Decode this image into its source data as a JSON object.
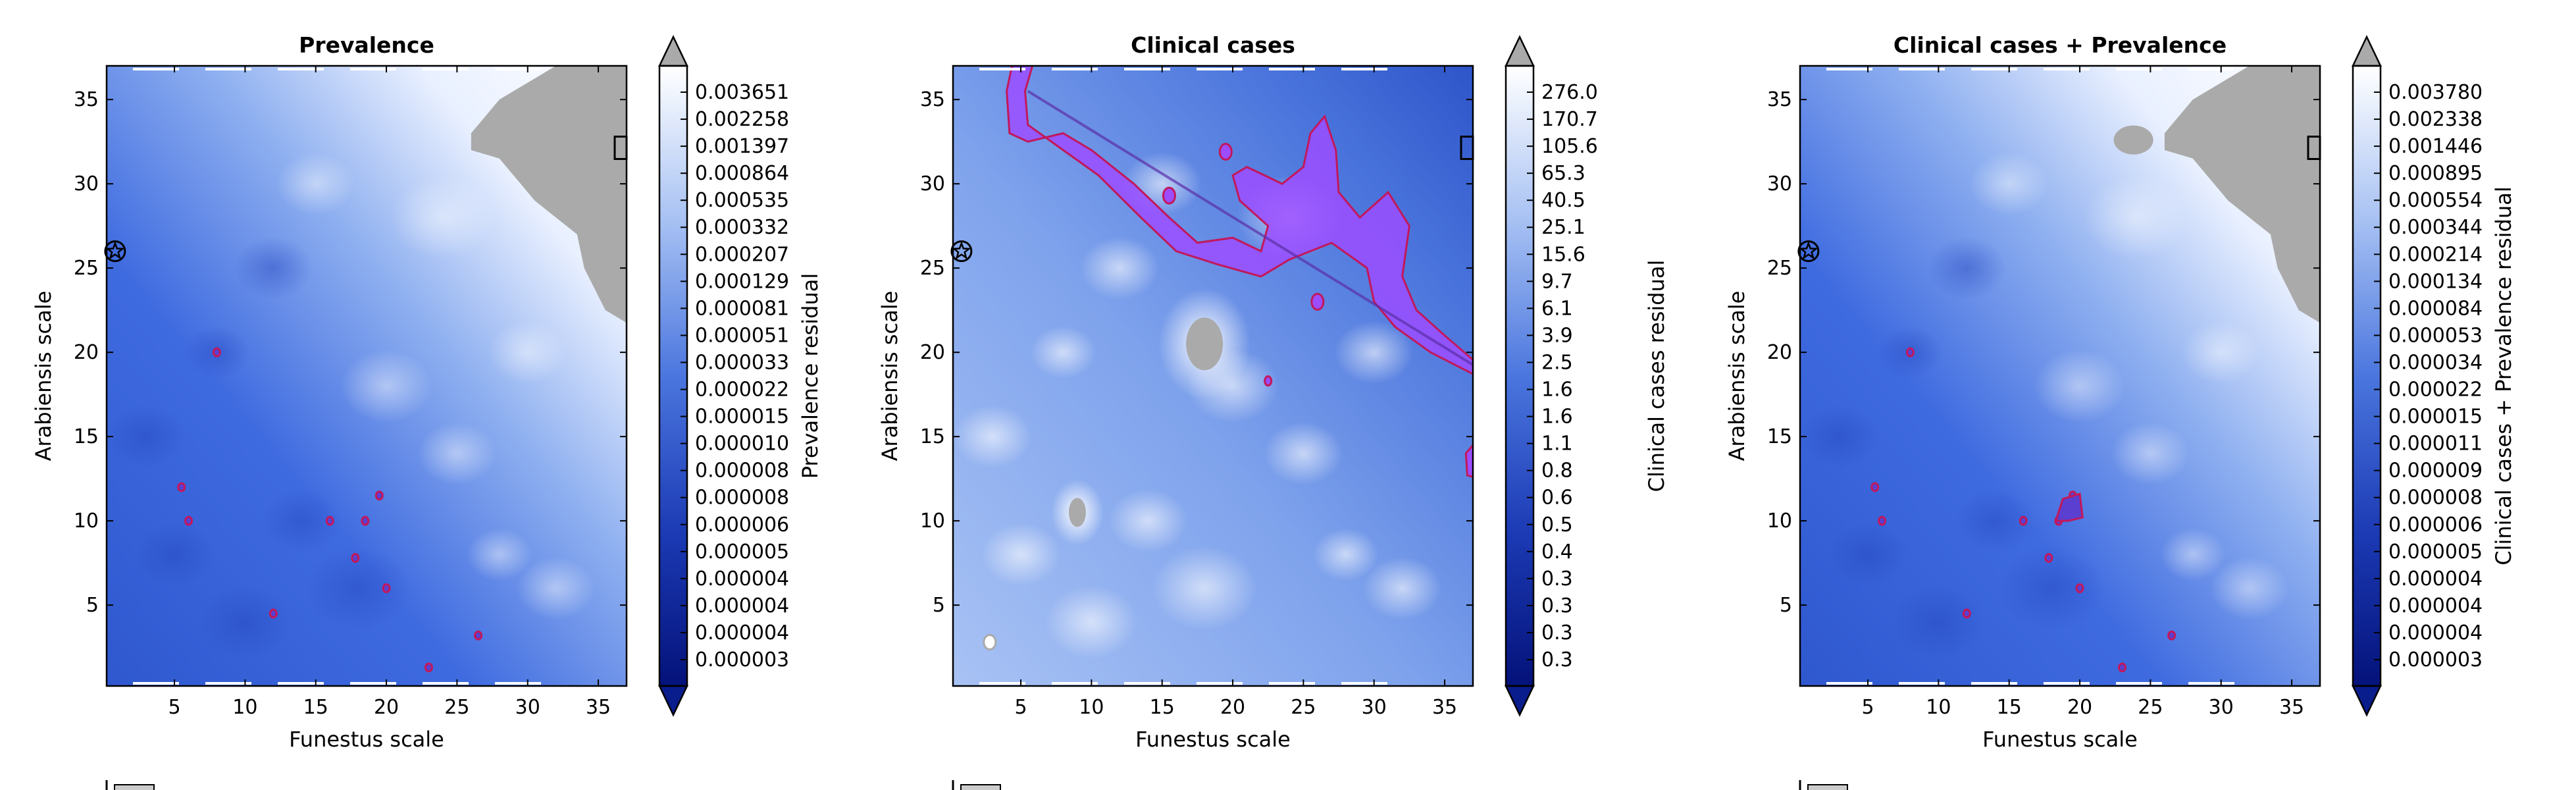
{
  "figure": {
    "colors": {
      "deep": "#0a1d8c",
      "mid": "#3a64d6",
      "light": "#9fbaf0",
      "pale": "#e8efff",
      "white": "#ffffff",
      "mask": "#aaaaaa",
      "contour": "#c2185b",
      "region": "#9b4dff"
    }
  },
  "chart_data": [
    {
      "type": "heatmap",
      "title": "Prevalence",
      "xlabel": "Funestus scale",
      "ylabel": "Arabiensis scale",
      "xlim": [
        0.2,
        37
      ],
      "ylim": [
        0.2,
        37
      ],
      "xticks": [
        5,
        10,
        15,
        20,
        25,
        30,
        35
      ],
      "yticks": [
        5,
        10,
        15,
        20,
        25,
        30,
        35
      ],
      "colorbar_label": "Prevalence residual",
      "colorbar_ticks": [
        "0.003651",
        "0.002258",
        "0.001397",
        "0.000864",
        "0.000535",
        "0.000332",
        "0.000207",
        "0.000129",
        "0.000081",
        "0.000051",
        "0.000033",
        "0.000022",
        "0.000015",
        "0.000010",
        "0.000008",
        "0.000008",
        "0.000006",
        "0.000005",
        "0.000004",
        "0.000004",
        "0.000004",
        "0.000003"
      ],
      "marker": {
        "x": 0.8,
        "y": 26.0
      }
    },
    {
      "type": "heatmap",
      "title": "Clinical cases",
      "xlabel": "Funestus scale",
      "ylabel": "Arabiensis scale",
      "xlim": [
        0.2,
        37
      ],
      "ylim": [
        0.2,
        37
      ],
      "xticks": [
        5,
        10,
        15,
        20,
        25,
        30,
        35
      ],
      "yticks": [
        5,
        10,
        15,
        20,
        25,
        30,
        35
      ],
      "colorbar_label": "Clinical cases residual",
      "colorbar_ticks": [
        "276.0",
        "170.7",
        "105.6",
        "65.3",
        "40.5",
        "25.1",
        "15.6",
        "9.7",
        "6.1",
        "3.9",
        "2.5",
        "1.6",
        "1.6",
        "1.1",
        "0.8",
        "0.6",
        "0.5",
        "0.4",
        "0.3",
        "0.3",
        "0.3",
        "0.3"
      ],
      "marker": {
        "x": 0.8,
        "y": 26.0
      }
    },
    {
      "type": "heatmap",
      "title": "Clinical cases + Prevalence",
      "xlabel": "Funestus scale",
      "ylabel": "Arabiensis scale",
      "xlim": [
        0.2,
        37
      ],
      "ylim": [
        0.2,
        37
      ],
      "xticks": [
        5,
        10,
        15,
        20,
        25,
        30,
        35
      ],
      "yticks": [
        5,
        10,
        15,
        20,
        25,
        30,
        35
      ],
      "colorbar_label": "Clinical cases + Prevalence residual",
      "colorbar_ticks": [
        "0.003780",
        "0.002338",
        "0.001446",
        "0.000895",
        "0.000554",
        "0.000344",
        "0.000214",
        "0.000134",
        "0.000084",
        "0.000053",
        "0.000034",
        "0.000022",
        "0.000015",
        "0.000011",
        "0.000009",
        "0.000008",
        "0.000006",
        "0.000005",
        "0.000004",
        "0.000004",
        "0.000004",
        "0.000003"
      ],
      "marker": {
        "x": 0.8,
        "y": 26.0
      }
    }
  ]
}
